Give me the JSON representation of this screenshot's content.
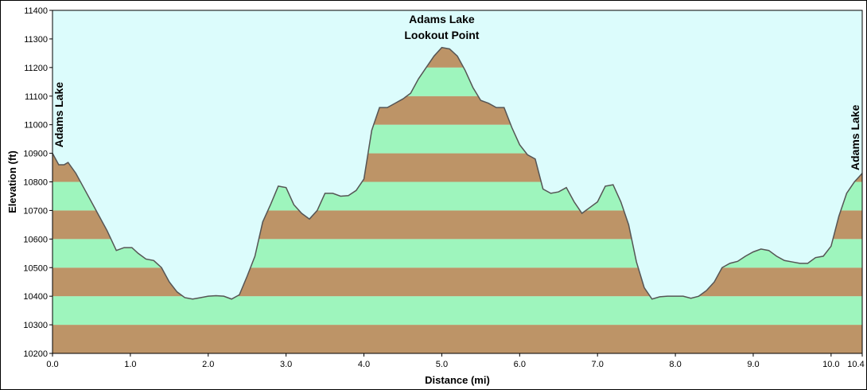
{
  "chart_data": {
    "type": "area",
    "title": "",
    "xlabel": "Distance   (mi)",
    "ylabel": "Elevation (ft)",
    "xlim": [
      0,
      10.4
    ],
    "ylim": [
      10200,
      11400
    ],
    "x_ticks": [
      "0.0",
      "1.0",
      "2.0",
      "3.0",
      "4.0",
      "5.0",
      "6.0",
      "7.0",
      "8.0",
      "9.0",
      "10.0",
      "10.4"
    ],
    "x_tick_values": [
      0,
      1,
      2,
      3,
      4,
      5,
      6,
      7,
      8,
      9,
      10,
      10.4
    ],
    "y_ticks": [
      "10200",
      "10300",
      "10400",
      "10500",
      "10600",
      "10700",
      "10800",
      "10900",
      "11000",
      "11100",
      "11200",
      "11300",
      "11400"
    ],
    "band_colors": [
      "#bd9467",
      "#9ef5bd"
    ],
    "sky_color": "#dcfcfc",
    "line_color": "#555555",
    "annotations": [
      {
        "lines": [
          "Adams Lake"
        ],
        "x": 0.0,
        "y": 10920,
        "orientation": "vertical"
      },
      {
        "lines": [
          "Adams Lake",
          "Lookout Point"
        ],
        "x": 5.0,
        "y": 11290,
        "orientation": "horizontal"
      },
      {
        "lines": [
          "Adams Lake"
        ],
        "x": 10.4,
        "y": 10840,
        "orientation": "vertical"
      }
    ],
    "series": [
      {
        "x": [
          0.0,
          0.08,
          0.15,
          0.2,
          0.3,
          0.4,
          0.5,
          0.6,
          0.7,
          0.82,
          0.92,
          1.02,
          1.1,
          1.2,
          1.3,
          1.4,
          1.5,
          1.6,
          1.7,
          1.8,
          1.9,
          2.0,
          2.1,
          2.2,
          2.3,
          2.4,
          2.5,
          2.6,
          2.7,
          2.8,
          2.9,
          3.0,
          3.1,
          3.2,
          3.3,
          3.4,
          3.5,
          3.6,
          3.7,
          3.8,
          3.9,
          4.0,
          4.1,
          4.2,
          4.3,
          4.4,
          4.5,
          4.6,
          4.7,
          4.8,
          4.9,
          5.0,
          5.1,
          5.2,
          5.3,
          5.4,
          5.5,
          5.6,
          5.7,
          5.8,
          5.9,
          6.0,
          6.1,
          6.2,
          6.3,
          6.4,
          6.5,
          6.6,
          6.7,
          6.8,
          6.9,
          7.0,
          7.1,
          7.2,
          7.3,
          7.4,
          7.5,
          7.6,
          7.7,
          7.8,
          7.9,
          8.0,
          8.1,
          8.2,
          8.3,
          8.4,
          8.5,
          8.6,
          8.7,
          8.8,
          8.9,
          9.0,
          9.1,
          9.2,
          9.3,
          9.4,
          9.5,
          9.6,
          9.7,
          9.8,
          9.9,
          10.0,
          10.1,
          10.2,
          10.3,
          10.4
        ],
        "y": [
          10900,
          10860,
          10860,
          10868,
          10830,
          10780,
          10730,
          10680,
          10630,
          10560,
          10570,
          10570,
          10550,
          10530,
          10525,
          10500,
          10450,
          10415,
          10395,
          10390,
          10395,
          10400,
          10402,
          10400,
          10390,
          10405,
          10470,
          10540,
          10660,
          10720,
          10785,
          10780,
          10720,
          10690,
          10670,
          10700,
          10760,
          10760,
          10750,
          10752,
          10770,
          10810,
          10980,
          11060,
          11060,
          11075,
          11090,
          11110,
          11160,
          11200,
          11240,
          11270,
          11265,
          11240,
          11190,
          11130,
          11085,
          11075,
          11060,
          11060,
          10990,
          10930,
          10895,
          10880,
          10775,
          10760,
          10765,
          10780,
          10730,
          10690,
          10710,
          10730,
          10785,
          10790,
          10730,
          10650,
          10520,
          10430,
          10390,
          10398,
          10400,
          10400,
          10400,
          10393,
          10400,
          10420,
          10450,
          10500,
          10515,
          10522,
          10540,
          10555,
          10565,
          10560,
          10540,
          10525,
          10520,
          10515,
          10515,
          10535,
          10540,
          10575,
          10680,
          10760,
          10800,
          10830
        ]
      }
    ]
  }
}
